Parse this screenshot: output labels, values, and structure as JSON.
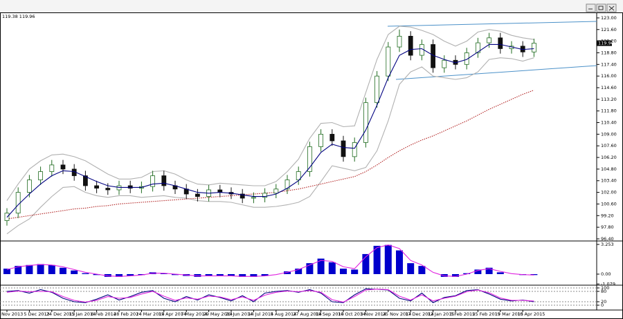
{
  "chart_data": [
    {
      "type": "candlestick",
      "header": "119.38 119.96",
      "categories": [
        "Nov 2013",
        null,
        "5 Dec 2013",
        null,
        "24 Dec 2013",
        null,
        "15 Jan 2014",
        null,
        "6 Feb 2014",
        null,
        "28 Feb 2014",
        null,
        "24 Mar 2014",
        null,
        "15 Apr 2014",
        null,
        "7 May 2014",
        null,
        "29 May 2014",
        null,
        "20 Jun 2014",
        null,
        "14 Jul 2014",
        null,
        "5 Aug 2014",
        null,
        "27 Aug 2014",
        null,
        "18 Sep 2014",
        null,
        "10 Oct 2014",
        null,
        "3 Nov 2014",
        null,
        "25 Nov 2014",
        null,
        "17 Dec 2014",
        null,
        "12 Jan 2015",
        null,
        "3 Feb 2015",
        null,
        "25 Feb 2015",
        null,
        "19 Mar 2015",
        null,
        "10 Apr 2015",
        null
      ],
      "open": [
        98.6,
        99.5,
        102.0,
        103.5,
        104.5,
        105.3,
        104.8,
        104.0,
        102.8,
        102.5,
        102.3,
        102.8,
        102.5,
        102.7,
        104.0,
        102.8,
        102.4,
        101.8,
        101.5,
        102.3,
        102.0,
        101.8,
        101.3,
        101.4,
        101.9,
        102.4,
        103.5,
        104.5,
        107.5,
        109.0,
        108.2,
        106.3,
        108.0,
        112.8,
        116.0,
        119.5,
        120.8,
        118.5,
        119.8,
        117.0,
        117.9,
        117.4,
        118.8,
        120.0,
        120.6,
        119.3,
        119.6,
        118.9
      ],
      "high": [
        100.1,
        102.6,
        104.1,
        105.1,
        105.9,
        105.9,
        105.4,
        104.6,
        103.4,
        103.1,
        103.4,
        103.4,
        103.3,
        104.6,
        104.6,
        103.4,
        103.0,
        102.4,
        102.9,
        102.9,
        102.6,
        102.4,
        102.0,
        102.5,
        103.0,
        104.1,
        105.1,
        108.1,
        109.6,
        109.6,
        108.8,
        108.6,
        113.4,
        116.6,
        120.1,
        121.6,
        121.4,
        120.4,
        120.4,
        118.5,
        118.5,
        119.4,
        120.6,
        121.2,
        121.2,
        120.2,
        120.2,
        120.5
      ],
      "low": [
        98.0,
        98.9,
        101.4,
        102.9,
        103.9,
        104.2,
        103.4,
        102.2,
        101.9,
        101.7,
        101.7,
        101.9,
        101.9,
        102.1,
        102.2,
        101.8,
        101.2,
        100.9,
        100.9,
        101.4,
        101.2,
        100.7,
        100.7,
        100.8,
        101.3,
        101.8,
        102.9,
        103.9,
        106.9,
        107.6,
        105.7,
        105.7,
        107.4,
        112.2,
        115.4,
        118.9,
        117.9,
        117.9,
        116.4,
        116.4,
        116.8,
        116.8,
        118.2,
        119.4,
        118.7,
        118.7,
        118.3,
        118.3
      ],
      "close": [
        99.5,
        102.0,
        103.5,
        104.5,
        105.3,
        104.8,
        104.0,
        102.8,
        102.5,
        102.3,
        102.8,
        102.5,
        102.7,
        104.0,
        102.8,
        102.4,
        101.8,
        101.5,
        102.3,
        102.0,
        101.8,
        101.3,
        101.4,
        101.9,
        102.4,
        103.5,
        104.5,
        107.5,
        109.0,
        108.2,
        106.3,
        108.0,
        112.8,
        116.0,
        119.5,
        120.8,
        118.5,
        119.8,
        117.0,
        117.9,
        117.4,
        118.8,
        120.0,
        120.6,
        119.3,
        119.6,
        118.9,
        119.96
      ],
      "up_color": "#1f6b1f",
      "down_color": "#111111",
      "ma": [
        99.0,
        100.5,
        101.8,
        103.0,
        104.0,
        104.6,
        104.5,
        103.9,
        103.3,
        102.8,
        102.6,
        102.6,
        102.6,
        103.0,
        103.1,
        102.8,
        102.4,
        102.0,
        101.9,
        102.0,
        101.9,
        101.7,
        101.5,
        101.5,
        101.8,
        102.5,
        103.4,
        105.0,
        106.8,
        107.8,
        107.4,
        107.3,
        109.5,
        112.5,
        115.8,
        118.5,
        119.2,
        119.3,
        118.5,
        118.0,
        117.6,
        118.0,
        118.9,
        119.8,
        119.8,
        119.5,
        119.2,
        119.3
      ],
      "ma_color": "#000080",
      "upper_band": [
        101.0,
        103.0,
        104.8,
        105.8,
        106.5,
        106.6,
        106.3,
        105.8,
        105.0,
        104.2,
        103.6,
        103.6,
        103.8,
        104.5,
        104.6,
        104.2,
        103.5,
        103.0,
        102.9,
        103.1,
        103.0,
        102.9,
        102.8,
        102.8,
        103.3,
        104.5,
        106.0,
        108.5,
        110.3,
        110.4,
        109.9,
        110.0,
        114.0,
        118.0,
        121.0,
        122.0,
        121.9,
        121.5,
        121.0,
        120.2,
        119.6,
        120.2,
        121.3,
        121.6,
        121.4,
        120.9,
        120.6,
        120.4
      ],
      "lower_band": [
        97.0,
        98.0,
        98.8,
        100.2,
        101.5,
        102.6,
        102.7,
        102.0,
        101.6,
        101.4,
        101.6,
        101.6,
        101.4,
        101.5,
        101.6,
        101.4,
        101.3,
        101.0,
        100.9,
        100.9,
        100.8,
        100.5,
        100.2,
        100.2,
        100.3,
        100.5,
        100.8,
        101.5,
        103.3,
        105.2,
        104.9,
        104.6,
        105.0,
        107.0,
        110.6,
        115.0,
        116.5,
        117.1,
        116.0,
        115.8,
        115.6,
        115.8,
        116.5,
        118.0,
        118.2,
        118.1,
        117.8,
        118.2
      ],
      "band_color": "#b0b0b0",
      "long_ma": [
        98.8,
        99.0,
        99.2,
        99.4,
        99.6,
        99.8,
        100.0,
        100.1,
        100.3,
        100.4,
        100.6,
        100.7,
        100.8,
        100.9,
        101.0,
        101.1,
        101.2,
        101.3,
        101.4,
        101.5,
        101.6,
        101.7,
        101.8,
        101.9,
        102.0,
        102.2,
        102.4,
        102.7,
        103.0,
        103.3,
        103.6,
        103.9,
        104.5,
        105.3,
        106.2,
        107.0,
        107.7,
        108.3,
        108.8,
        109.4,
        110.0,
        110.6,
        111.3,
        112.0,
        112.6,
        113.2,
        113.8,
        114.3
      ],
      "long_ma_color": "#b22222",
      "ylim": [
        96.23,
        123.66
      ],
      "yticks": [
        {
          "value": 96.4,
          "label": "96.40"
        },
        {
          "value": 97.8,
          "label": "97.80"
        },
        {
          "value": 99.2,
          "label": "99.20"
        },
        {
          "value": 100.6,
          "label": "100.60"
        },
        {
          "value": 102,
          "label": "102.00"
        },
        {
          "value": 103.4,
          "label": "103.40"
        },
        {
          "value": 104.8,
          "label": "104.80"
        },
        {
          "value": 106.2,
          "label": "106.20"
        },
        {
          "value": 107.6,
          "label": "107.60"
        },
        {
          "value": 109,
          "label": "109.00"
        },
        {
          "value": 110.4,
          "label": "110.40"
        },
        {
          "value": 111.8,
          "label": "111.80"
        },
        {
          "value": 113.2,
          "label": "113.20"
        },
        {
          "value": 114.6,
          "label": "114.60"
        },
        {
          "value": 116,
          "label": "116.00"
        },
        {
          "value": 117.4,
          "label": "117.40"
        },
        {
          "value": 118.8,
          "label": "118.80"
        },
        {
          "value": 120.2,
          "label": "120.20"
        },
        {
          "value": 121.6,
          "label": "121.60"
        },
        {
          "value": 123,
          "label": "123.00"
        }
      ]
    },
    {
      "type": "bar",
      "values": [
        0.6,
        0.9,
        1.0,
        1.1,
        1.0,
        0.7,
        0.4,
        0.1,
        -0.1,
        -0.3,
        -0.3,
        -0.2,
        -0.1,
        0.2,
        0.1,
        -0.1,
        -0.2,
        -0.3,
        -0.2,
        -0.2,
        -0.2,
        -0.3,
        -0.3,
        -0.2,
        0.0,
        0.3,
        0.6,
        1.2,
        1.7,
        1.3,
        0.6,
        0.5,
        2.2,
        3.1,
        3.2,
        2.6,
        1.2,
        0.9,
        0.0,
        -0.3,
        -0.3,
        0.1,
        0.5,
        0.7,
        0.2,
        0.0,
        -0.1,
        -0.1
      ],
      "color": "#0000cc",
      "signal": [
        0.5,
        0.8,
        0.95,
        1.05,
        1.0,
        0.8,
        0.5,
        0.2,
        0.0,
        -0.2,
        -0.25,
        -0.2,
        -0.1,
        0.1,
        0.1,
        0.0,
        -0.1,
        -0.2,
        -0.2,
        -0.2,
        -0.2,
        -0.25,
        -0.25,
        -0.2,
        -0.05,
        0.2,
        0.5,
        1.0,
        1.5,
        1.4,
        0.8,
        0.6,
        1.9,
        2.9,
        3.2,
        2.8,
        1.5,
        1.0,
        0.2,
        -0.2,
        -0.25,
        0.0,
        0.4,
        0.6,
        0.3,
        0.05,
        -0.05,
        -0.1
      ],
      "signal_color": "#e020e0",
      "ylim": [
        -1.135,
        3.556
      ],
      "yticks": [
        -1.079,
        {
          "value": 0,
          "label": "0.00"
        },
        3.253
      ]
    },
    {
      "type": "line",
      "main": [
        80,
        85,
        70,
        90,
        75,
        40,
        20,
        15,
        35,
        60,
        30,
        50,
        75,
        85,
        40,
        20,
        50,
        30,
        60,
        45,
        25,
        55,
        20,
        70,
        80,
        85,
        75,
        90,
        70,
        20,
        15,
        60,
        95,
        92,
        88,
        40,
        25,
        70,
        15,
        45,
        55,
        85,
        90,
        65,
        35,
        25,
        30,
        20
      ],
      "main_color": "#000080",
      "signal": [
        75,
        82,
        78,
        80,
        78,
        50,
        28,
        18,
        28,
        50,
        40,
        45,
        65,
        80,
        52,
        28,
        42,
        35,
        52,
        48,
        32,
        48,
        28,
        58,
        75,
        82,
        78,
        85,
        75,
        32,
        18,
        50,
        88,
        93,
        90,
        52,
        30,
        60,
        25,
        40,
        52,
        78,
        88,
        72,
        42,
        28,
        28,
        24
      ],
      "signal_color": "#e020e0",
      "ylim": [
        -24,
        112
      ],
      "yticks": [
        0,
        20,
        80,
        100
      ]
    }
  ]
}
